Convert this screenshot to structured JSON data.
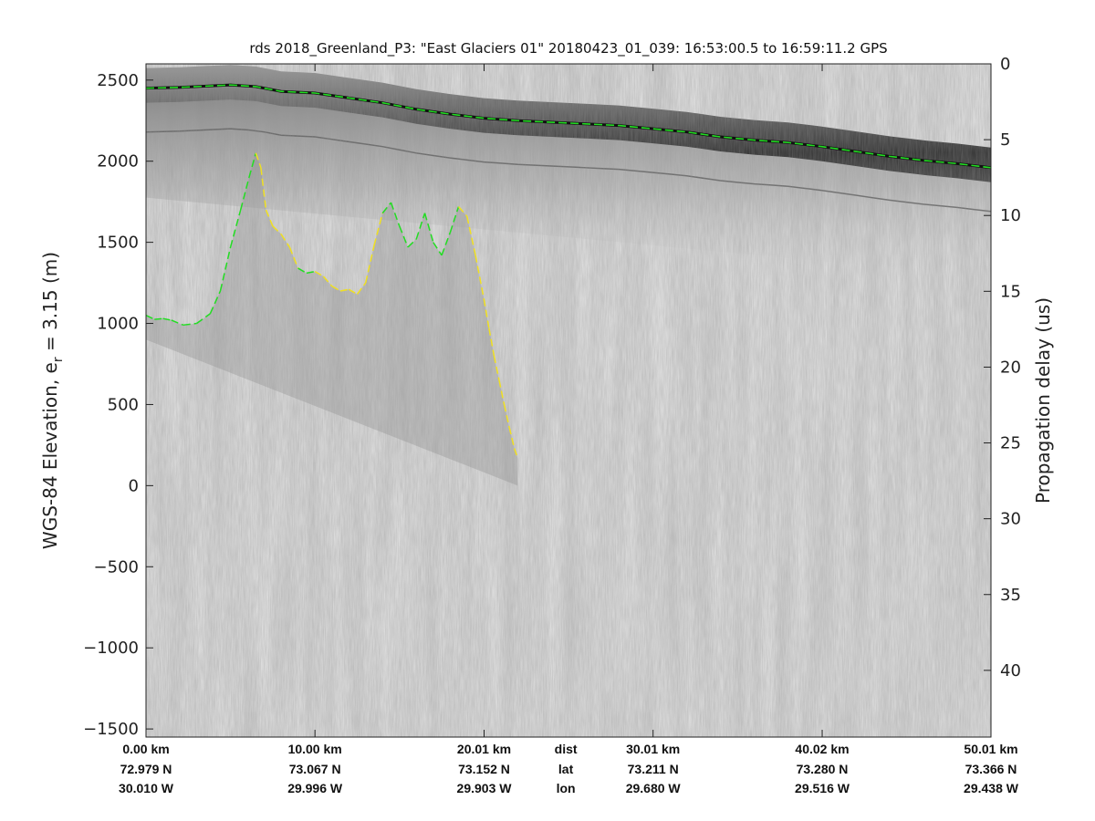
{
  "chart_data": {
    "type": "line",
    "title": "rds 2018_Greenland_P3: \"East Glaciers 01\"  20180423_01_039: 16:53:00.5 to 16:59:11.2 GPS",
    "ylabel_main": "WGS-84 Elevation, e",
    "ylabel_sub": "r",
    "ylabel_tail": " = 3.15 (m)",
    "y2label": "Propagation delay (us)",
    "xlim": [
      0,
      50.01
    ],
    "ylim": [
      -1550,
      2600
    ],
    "y2lim": [
      0,
      44.4
    ],
    "yticks": [
      2500,
      2000,
      1500,
      1000,
      500,
      0,
      -500,
      -1000,
      -1500
    ],
    "y2ticks": [
      0,
      5,
      10,
      15,
      20,
      25,
      30,
      35,
      40
    ],
    "x_ticks": [
      {
        "x": 0.0,
        "dist": "0.00 km",
        "lat": "72.979 N",
        "lon": "30.010 W"
      },
      {
        "x": 10.0,
        "dist": "10.00 km",
        "lat": "73.067 N",
        "lon": "29.996 W"
      },
      {
        "x": 20.01,
        "dist": "20.01 km",
        "lat": "73.152 N",
        "lon": "29.903 W"
      },
      {
        "x": 30.01,
        "dist": "30.01 km",
        "lat": "73.211 N",
        "lon": "29.680 W"
      },
      {
        "x": 40.02,
        "dist": "40.02 km",
        "lat": "73.280 N",
        "lon": "29.516 W"
      },
      {
        "x": 50.01,
        "dist": "50.01 km",
        "lat": "73.366 N",
        "lon": "29.438 W"
      }
    ],
    "row_labels": {
      "dist": "dist",
      "lat": "lat",
      "lon": "lon"
    },
    "series": [
      {
        "role": "surface",
        "color": "#22dd22",
        "dash": "dashed",
        "x": [
          0,
          2,
          4,
          5,
          6.5,
          8,
          10,
          12,
          14,
          16,
          18,
          20,
          22,
          24,
          26,
          28,
          30,
          32,
          34,
          36,
          38,
          40,
          42,
          44,
          46,
          48,
          50.01
        ],
        "y": [
          2450,
          2455,
          2465,
          2470,
          2460,
          2430,
          2420,
          2390,
          2360,
          2320,
          2290,
          2265,
          2250,
          2240,
          2230,
          2220,
          2200,
          2180,
          2150,
          2130,
          2115,
          2090,
          2060,
          2030,
          2005,
          1985,
          1960
        ]
      },
      {
        "role": "bed",
        "color_picked": "#22dd22",
        "color_interp": "#f0e020",
        "dash": "dashed",
        "x": [
          0,
          0.5,
          1.0,
          1.5,
          2.2,
          3.0,
          3.8,
          4.4,
          5.0,
          5.6,
          6.1,
          6.5,
          6.8,
          7.1,
          7.5,
          8.0,
          8.5,
          9.0,
          9.5,
          10.0,
          10.5,
          11.0,
          11.5,
          12.0,
          12.5,
          13.0,
          13.5,
          14.0,
          14.5,
          15.0,
          15.5,
          16.0,
          16.5,
          17.0,
          17.5,
          18.0,
          18.5,
          19.0,
          19.5,
          20.0,
          20.3,
          20.6,
          20.9,
          21.2,
          21.5,
          21.8,
          22.0
        ],
        "y": [
          1050,
          1025,
          1030,
          1020,
          990,
          1000,
          1060,
          1200,
          1470,
          1700,
          1900,
          2050,
          1960,
          1700,
          1600,
          1550,
          1470,
          1340,
          1310,
          1320,
          1290,
          1230,
          1200,
          1210,
          1180,
          1250,
          1480,
          1680,
          1745,
          1600,
          1470,
          1520,
          1680,
          1500,
          1420,
          1560,
          1720,
          1660,
          1420,
          1150,
          970,
          800,
          650,
          500,
          360,
          230,
          170
        ],
        "picked": [
          true,
          true,
          true,
          true,
          true,
          true,
          true,
          true,
          true,
          true,
          true,
          true,
          false,
          false,
          false,
          false,
          false,
          true,
          true,
          true,
          false,
          false,
          false,
          false,
          false,
          false,
          false,
          true,
          true,
          true,
          true,
          true,
          true,
          true,
          true,
          true,
          true,
          false,
          false,
          false,
          false,
          false,
          false,
          false,
          false,
          false,
          false
        ]
      }
    ],
    "colormap": "gray"
  }
}
